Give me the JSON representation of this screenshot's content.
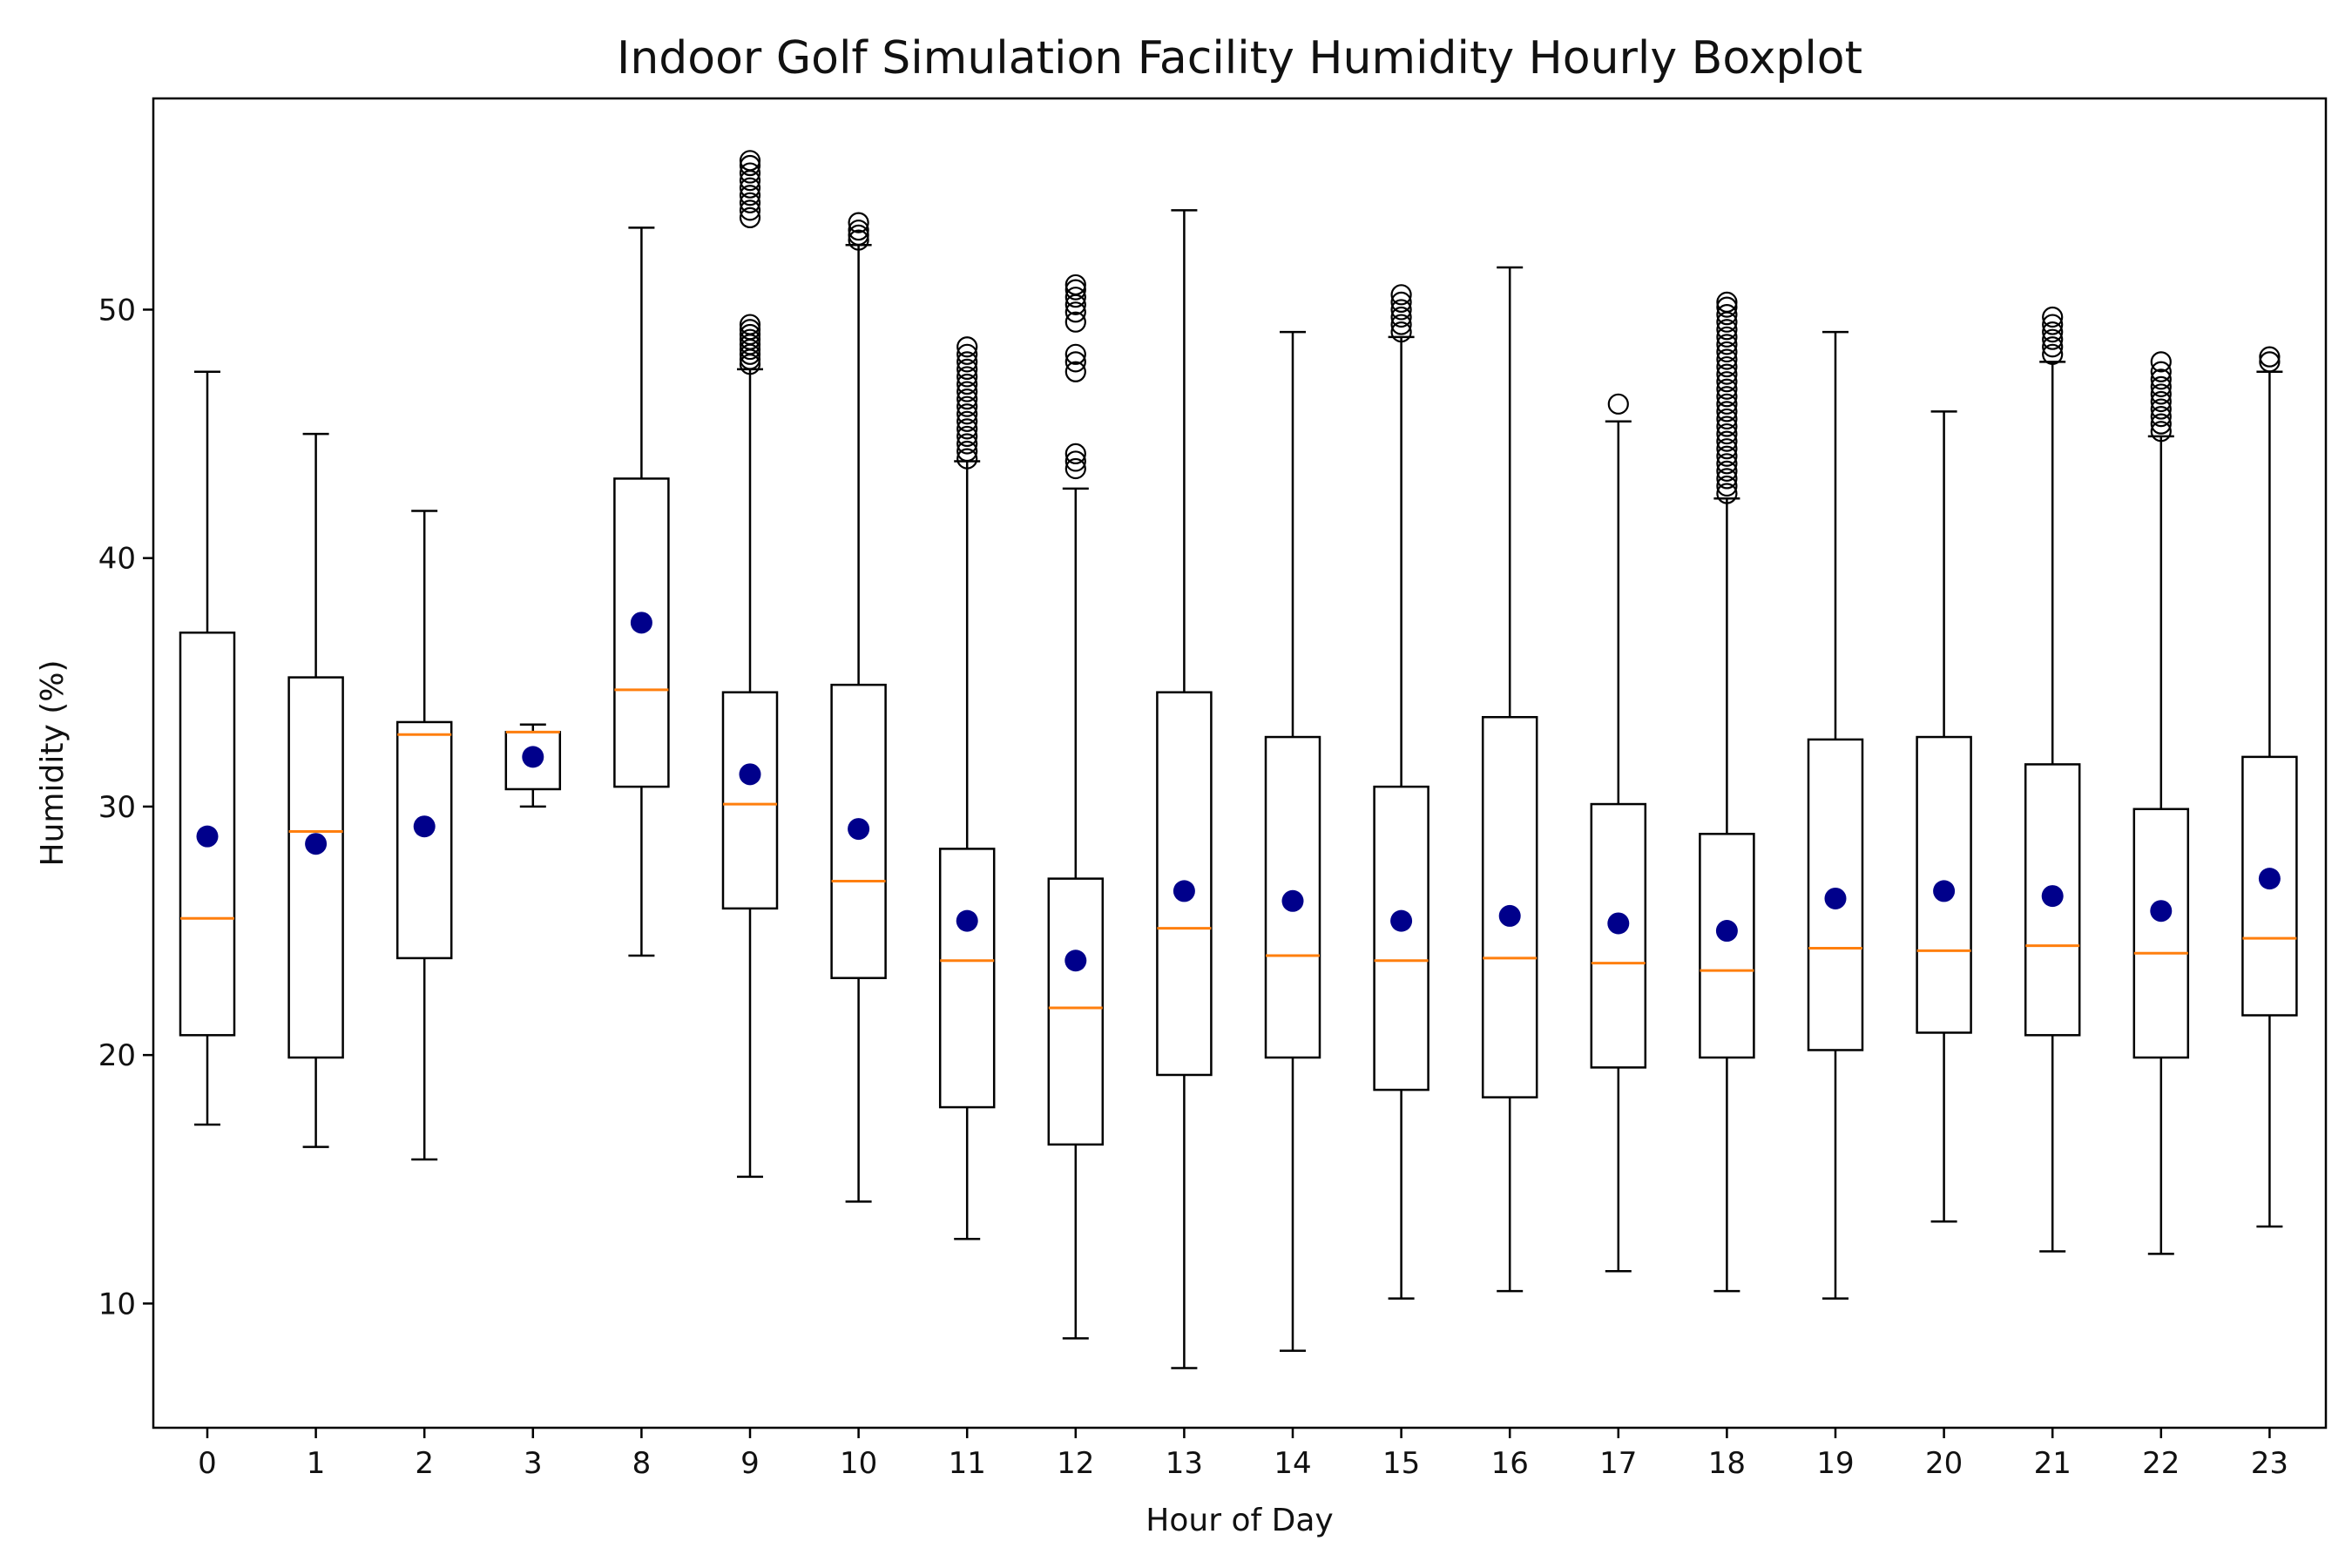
{
  "chart_data": {
    "type": "boxplot",
    "title": "Indoor Golf Simulation Facility Humidity Hourly Boxplot",
    "xlabel": "Hour of Day",
    "ylabel": "Humidity (%)",
    "ylim": [
      5,
      58.5
    ],
    "yticks": [
      10,
      20,
      30,
      40,
      50
    ],
    "grid": false,
    "legend": "none",
    "colors": {
      "box": "#000000",
      "median": "#ff7f0e",
      "mean": "#00008b",
      "flier": "#000000"
    },
    "categories": [
      "0",
      "1",
      "2",
      "3",
      "8",
      "9",
      "10",
      "11",
      "12",
      "13",
      "14",
      "15",
      "16",
      "17",
      "18",
      "19",
      "20",
      "21",
      "22",
      "23"
    ],
    "boxes": [
      {
        "hour": "0",
        "whisker_low": 17.2,
        "q1": 20.8,
        "median": 25.5,
        "q3": 37.0,
        "whisker_high": 47.5,
        "mean": 28.8,
        "fliers": []
      },
      {
        "hour": "1",
        "whisker_low": 16.3,
        "q1": 19.9,
        "median": 29.0,
        "q3": 35.2,
        "whisker_high": 45.0,
        "mean": 28.5,
        "fliers": []
      },
      {
        "hour": "2",
        "whisker_low": 15.8,
        "q1": 23.9,
        "median": 32.9,
        "q3": 33.4,
        "whisker_high": 41.9,
        "mean": 29.2,
        "fliers": []
      },
      {
        "hour": "3",
        "whisker_low": 30.0,
        "q1": 30.7,
        "median": 33.0,
        "q3": 33.0,
        "whisker_high": 33.3,
        "mean": 32.0,
        "fliers": []
      },
      {
        "hour": "8",
        "whisker_low": 24.0,
        "q1": 30.8,
        "median": 34.7,
        "q3": 43.2,
        "whisker_high": 53.3,
        "mean": 37.4,
        "fliers": []
      },
      {
        "hour": "9",
        "whisker_low": 15.1,
        "q1": 25.9,
        "median": 30.1,
        "q3": 34.6,
        "whisker_high": 47.6,
        "mean": 31.3,
        "fliers": [
          47.8,
          48.0,
          48.2,
          48.4,
          48.6,
          48.8,
          49.0,
          49.2,
          49.4,
          53.7,
          54.0,
          54.3,
          54.6,
          54.9,
          55.2,
          55.5,
          55.8,
          56.0
        ]
      },
      {
        "hour": "10",
        "whisker_low": 14.1,
        "q1": 23.1,
        "median": 27.0,
        "q3": 34.9,
        "whisker_high": 52.6,
        "mean": 29.1,
        "fliers": [
          52.8,
          53.0,
          53.2,
          53.5
        ]
      },
      {
        "hour": "11",
        "whisker_low": 12.6,
        "q1": 17.9,
        "median": 23.8,
        "q3": 28.3,
        "whisker_high": 43.9,
        "mean": 25.4,
        "fliers": [
          44.0,
          44.3,
          44.6,
          44.9,
          45.2,
          45.5,
          45.8,
          46.1,
          46.4,
          46.7,
          47.0,
          47.3,
          47.6,
          47.9,
          48.2,
          48.5
        ]
      },
      {
        "hour": "12",
        "whisker_low": 8.6,
        "q1": 16.4,
        "median": 21.9,
        "q3": 27.1,
        "whisker_high": 42.8,
        "mean": 23.8,
        "fliers": [
          43.6,
          43.9,
          44.2,
          47.5,
          47.9,
          48.2,
          49.5,
          49.9,
          50.2,
          50.5,
          50.8,
          51.0
        ]
      },
      {
        "hour": "13",
        "whisker_low": 7.4,
        "q1": 19.2,
        "median": 25.1,
        "q3": 34.6,
        "whisker_high": 54.0,
        "mean": 26.6,
        "fliers": []
      },
      {
        "hour": "14",
        "whisker_low": 8.1,
        "q1": 19.9,
        "median": 24.0,
        "q3": 32.8,
        "whisker_high": 49.1,
        "mean": 26.2,
        "fliers": []
      },
      {
        "hour": "15",
        "whisker_low": 10.2,
        "q1": 18.6,
        "median": 23.8,
        "q3": 30.8,
        "whisker_high": 48.9,
        "mean": 25.4,
        "fliers": [
          49.1,
          49.4,
          49.7,
          50.0,
          50.3,
          50.6
        ]
      },
      {
        "hour": "16",
        "whisker_low": 10.5,
        "q1": 18.3,
        "median": 23.9,
        "q3": 33.6,
        "whisker_high": 51.7,
        "mean": 25.6,
        "fliers": []
      },
      {
        "hour": "17",
        "whisker_low": 11.3,
        "q1": 19.5,
        "median": 23.7,
        "q3": 30.1,
        "whisker_high": 45.5,
        "mean": 25.3,
        "fliers": [
          46.2
        ]
      },
      {
        "hour": "18",
        "whisker_low": 10.5,
        "q1": 19.9,
        "median": 23.4,
        "q3": 28.9,
        "whisker_high": 42.4,
        "mean": 25.0,
        "fliers": [
          42.6,
          42.9,
          43.2,
          43.5,
          43.8,
          44.1,
          44.4,
          44.7,
          45.0,
          45.3,
          45.6,
          45.9,
          46.2,
          46.5,
          46.8,
          47.1,
          47.4,
          47.7,
          48.0,
          48.3,
          48.6,
          48.9,
          49.2,
          49.5,
          49.8,
          50.1,
          50.3
        ]
      },
      {
        "hour": "19",
        "whisker_low": 10.2,
        "q1": 20.2,
        "median": 24.3,
        "q3": 32.7,
        "whisker_high": 49.1,
        "mean": 26.3,
        "fliers": []
      },
      {
        "hour": "20",
        "whisker_low": 13.3,
        "q1": 20.9,
        "median": 24.2,
        "q3": 32.8,
        "whisker_high": 45.9,
        "mean": 26.6,
        "fliers": []
      },
      {
        "hour": "21",
        "whisker_low": 12.1,
        "q1": 20.8,
        "median": 24.4,
        "q3": 31.7,
        "whisker_high": 47.9,
        "mean": 26.4,
        "fliers": [
          48.2,
          48.5,
          48.8,
          49.1,
          49.4,
          49.7
        ]
      },
      {
        "hour": "22",
        "whisker_low": 12.0,
        "q1": 19.9,
        "median": 24.1,
        "q3": 29.9,
        "whisker_high": 44.9,
        "mean": 25.8,
        "fliers": [
          45.1,
          45.4,
          45.7,
          46.0,
          46.3,
          46.6,
          46.9,
          47.2,
          47.5,
          47.9
        ]
      },
      {
        "hour": "23",
        "whisker_low": 13.1,
        "q1": 21.6,
        "median": 24.7,
        "q3": 32.0,
        "whisker_high": 47.5,
        "mean": 27.1,
        "fliers": [
          47.9,
          48.1
        ]
      }
    ]
  }
}
